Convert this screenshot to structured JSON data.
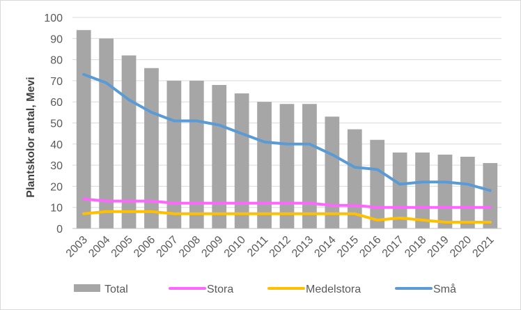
{
  "chart_data": {
    "type": "bar",
    "title": "",
    "xlabel": "",
    "ylabel": "Plantskolor antal, Mevi",
    "ylim": [
      0,
      100
    ],
    "yticks": [
      0,
      10,
      20,
      30,
      40,
      50,
      60,
      70,
      80,
      90,
      100
    ],
    "grid": true,
    "legend_position": "bottom",
    "categories": [
      "2003",
      "2004",
      "2005",
      "2006",
      "2007",
      "2008",
      "2009",
      "2010",
      "2011",
      "2012",
      "2013",
      "2014",
      "2015",
      "2016",
      "2017",
      "2018",
      "2019",
      "2020",
      "2021"
    ],
    "series": [
      {
        "name": "Total",
        "type": "bar",
        "color": "#a6a6a6",
        "values": [
          94,
          90,
          82,
          76,
          70,
          70,
          68,
          64,
          60,
          59,
          59,
          53,
          47,
          42,
          36,
          36,
          35,
          34,
          31
        ]
      },
      {
        "name": "Stora",
        "type": "line",
        "color": "#ff66ff",
        "values": [
          14,
          13,
          13,
          13,
          12,
          12,
          12,
          12,
          12,
          12,
          12,
          11,
          11,
          10,
          10,
          10,
          10,
          10,
          10
        ]
      },
      {
        "name": "Medelstora",
        "type": "line",
        "color": "#ffc000",
        "values": [
          7,
          8,
          8,
          8,
          7,
          7,
          7,
          7,
          7,
          7,
          7,
          7,
          7,
          4,
          5,
          4,
          3,
          3,
          3
        ]
      },
      {
        "name": "Små",
        "type": "line",
        "color": "#5b9bd5",
        "values": [
          73,
          69,
          61,
          55,
          51,
          51,
          49,
          45,
          41,
          40,
          40,
          35,
          29,
          28,
          21,
          22,
          22,
          21,
          18
        ]
      }
    ]
  }
}
